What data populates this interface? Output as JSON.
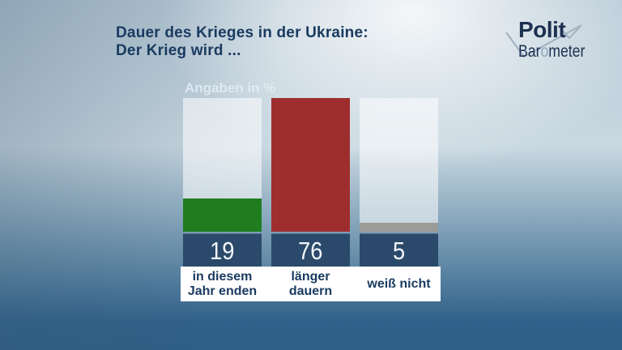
{
  "title": {
    "line1": "Dauer des Krieges in der Ukraine:",
    "line2": "Der Krieg wird ..."
  },
  "logo": {
    "word_top": "Polit",
    "word_bottom_parts": {
      "pre": "Bar",
      "o": "o",
      "post": "meter"
    }
  },
  "chart_note": "Angaben in %",
  "chart_data": {
    "type": "bar",
    "title": "Dauer des Krieges in der Ukraine: Der Krieg wird ...",
    "unit_label": "Angaben in %",
    "categories": [
      "in diesem Jahr enden",
      "länger dauern",
      "weiß nicht"
    ],
    "category_lines": [
      [
        "in diesem",
        "Jahr enden"
      ],
      [
        "länger",
        "dauern"
      ],
      [
        "weiß nicht"
      ]
    ],
    "values": [
      19,
      76,
      5
    ],
    "bar_colors": [
      "#1f7d20",
      "#9e2e2e",
      "#9b9b98"
    ],
    "scale_max": 76,
    "ylim": [
      0,
      76
    ],
    "grid": false,
    "legend_position": "none",
    "value_band_color": "#2b4a6b"
  },
  "colors": {
    "title_text": "#1a3b60",
    "logo_text": "#1c3050",
    "logo_mark": "#9fb0bf",
    "logo_o": "#93a7bc",
    "note_text": "#e6eef4",
    "track": "rgba(255,255,255,0.55)",
    "label_band_bg": "#ffffff",
    "value_text": "#f2f6f9"
  }
}
